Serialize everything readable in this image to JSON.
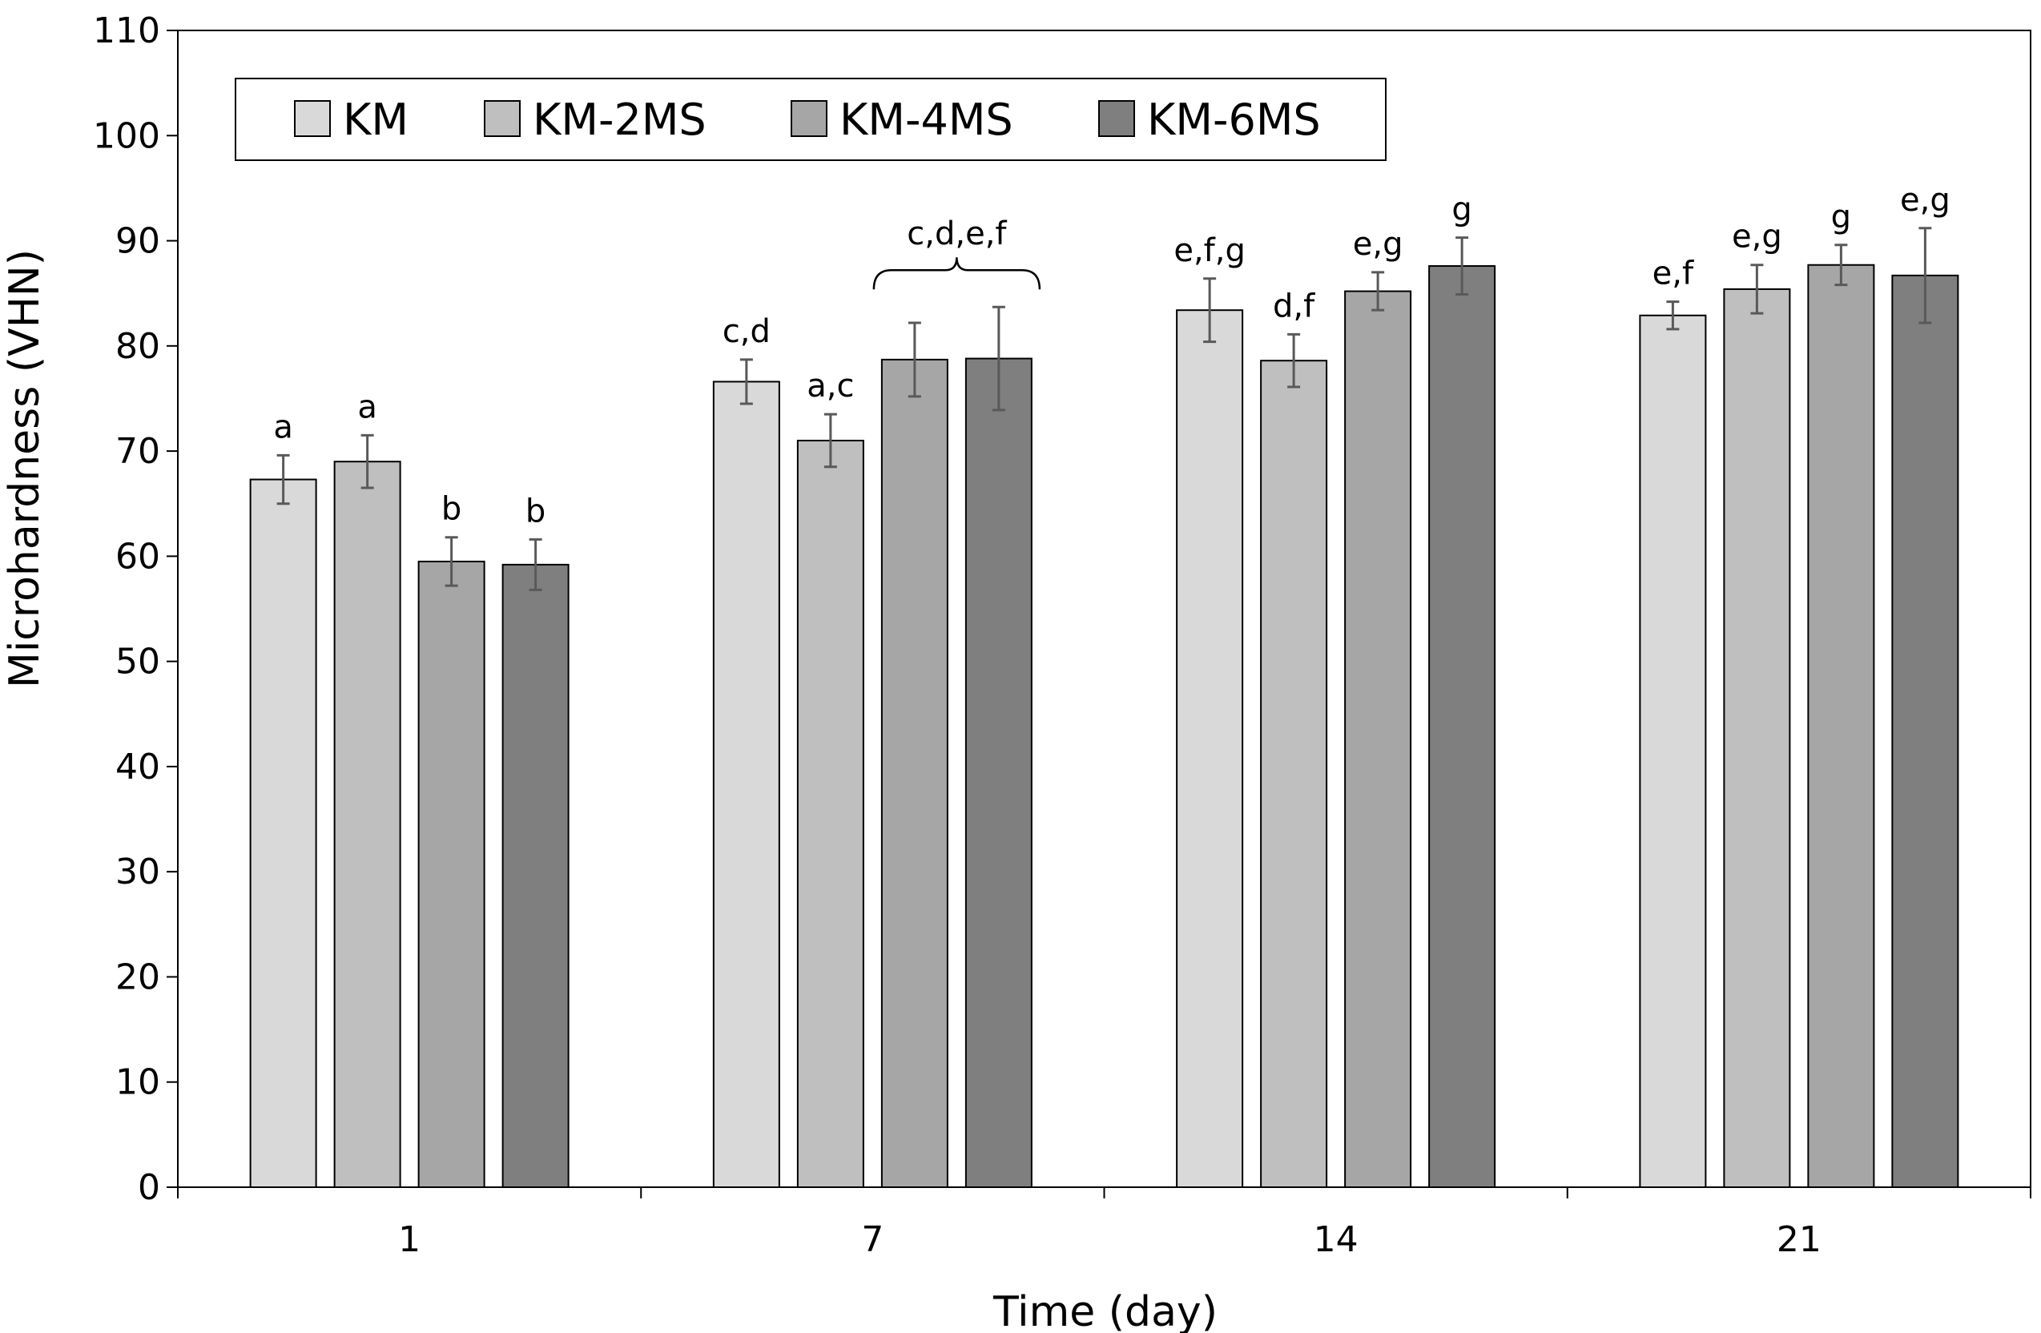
{
  "chart_data": {
    "type": "bar",
    "title": "",
    "xlabel": "Time (day)",
    "ylabel": "Microhardness (VHN)",
    "ylim": [
      0,
      110
    ],
    "yticks": [
      0,
      10,
      20,
      30,
      40,
      50,
      60,
      70,
      80,
      90,
      100,
      110
    ],
    "grid": false,
    "legend_position": "top-left",
    "categories": [
      "1",
      "7",
      "14",
      "21"
    ],
    "series": [
      {
        "name": "KM",
        "color": "#d9d9d9",
        "values": [
          67.3,
          76.6,
          83.4,
          82.9
        ],
        "errors": [
          2.3,
          2.1,
          3.0,
          1.3
        ],
        "labels": [
          "a",
          "c,d",
          "e,f,g",
          "e,f"
        ]
      },
      {
        "name": "KM-2MS",
        "color": "#bfbfbf",
        "values": [
          69.0,
          71.0,
          78.6,
          85.4
        ],
        "errors": [
          2.5,
          2.5,
          2.5,
          2.3
        ],
        "labels": [
          "a",
          "a,c",
          "d,f",
          "e,g"
        ]
      },
      {
        "name": "KM-4MS",
        "color": "#a6a6a6",
        "values": [
          59.5,
          78.7,
          85.2,
          87.7
        ],
        "errors": [
          2.3,
          3.5,
          1.8,
          1.9
        ],
        "labels": [
          "b",
          "",
          "e,g",
          "g"
        ]
      },
      {
        "name": "KM-6MS",
        "color": "#7f7f7f",
        "values": [
          59.2,
          78.8,
          87.6,
          86.7
        ],
        "errors": [
          2.4,
          4.9,
          2.7,
          4.5
        ],
        "labels": [
          "b",
          "",
          "g",
          "e,g"
        ]
      }
    ],
    "annotations": [
      {
        "text": "c,d,e,f",
        "category": "7",
        "series": [
          "KM-4MS",
          "KM-6MS"
        ],
        "style": "brace"
      }
    ]
  }
}
